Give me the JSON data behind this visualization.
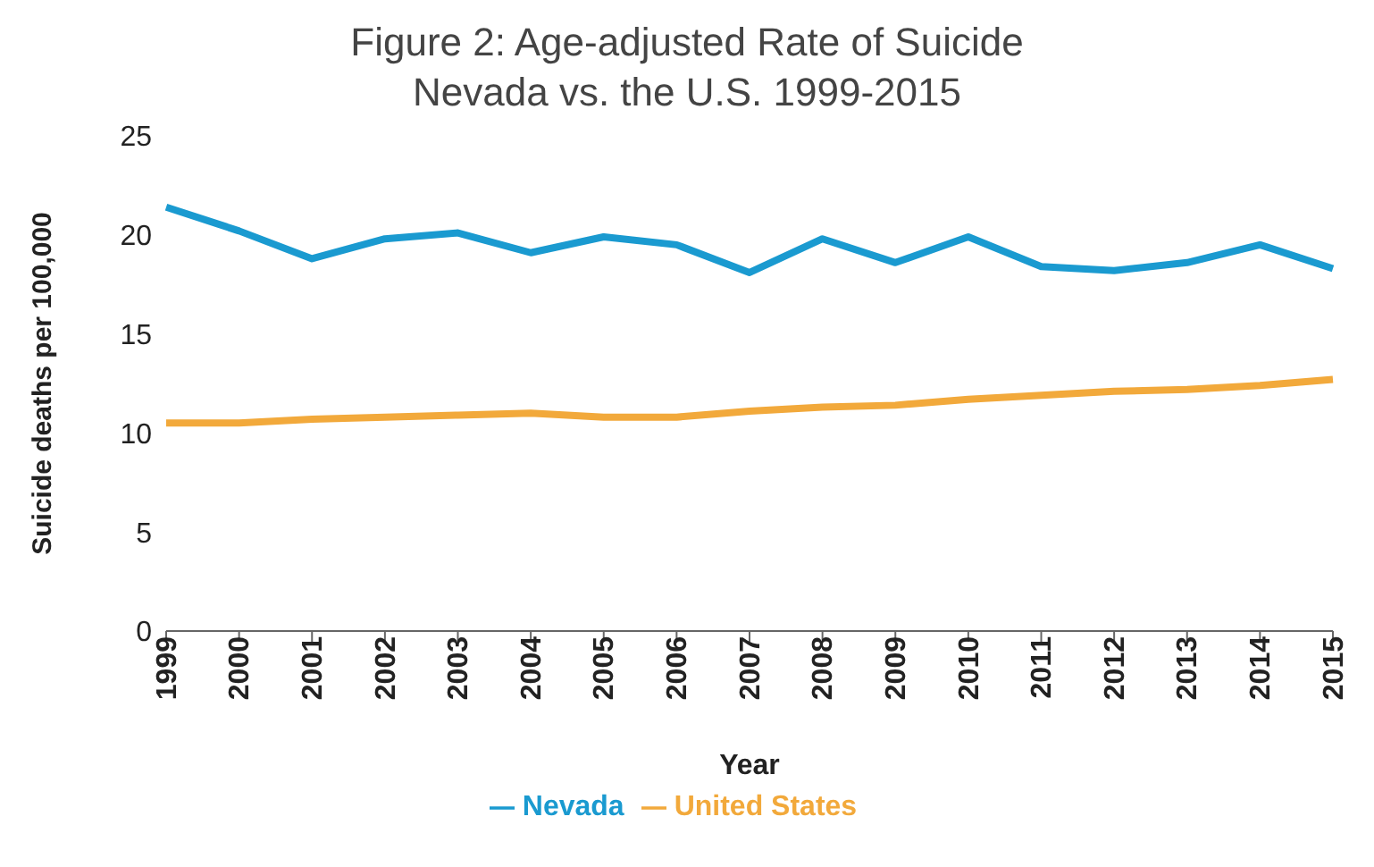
{
  "chart_data": {
    "type": "line",
    "title": "Figure 2: Age-adjusted Rate of Suicide\nNevada vs. the U.S. 1999-2015",
    "xlabel": "Year",
    "ylabel": "Suicide deaths per 100,000",
    "categories": [
      "1999",
      "2000",
      "2001",
      "2002",
      "2003",
      "2004",
      "2005",
      "2006",
      "2007",
      "2008",
      "2009",
      "2010",
      "2011",
      "2012",
      "2013",
      "2014",
      "2015"
    ],
    "series": [
      {
        "name": "Nevada",
        "color": "#1a9ad0",
        "values": [
          21.4,
          20.2,
          18.8,
          19.8,
          20.1,
          19.1,
          19.9,
          19.5,
          18.1,
          19.8,
          18.6,
          19.9,
          18.4,
          18.2,
          18.6,
          19.5,
          18.3
        ]
      },
      {
        "name": "United States",
        "color": "#f2a93b",
        "values": [
          10.5,
          10.5,
          10.7,
          10.8,
          10.9,
          11.0,
          10.8,
          10.8,
          11.1,
          11.3,
          11.4,
          11.7,
          11.9,
          12.1,
          12.2,
          12.4,
          12.7
        ]
      }
    ],
    "ylim": [
      0,
      25
    ],
    "yticks": [
      0,
      5,
      10,
      15,
      20,
      25
    ],
    "grid": false,
    "legend": "bottom",
    "marker": "none",
    "line_style": "solid"
  }
}
